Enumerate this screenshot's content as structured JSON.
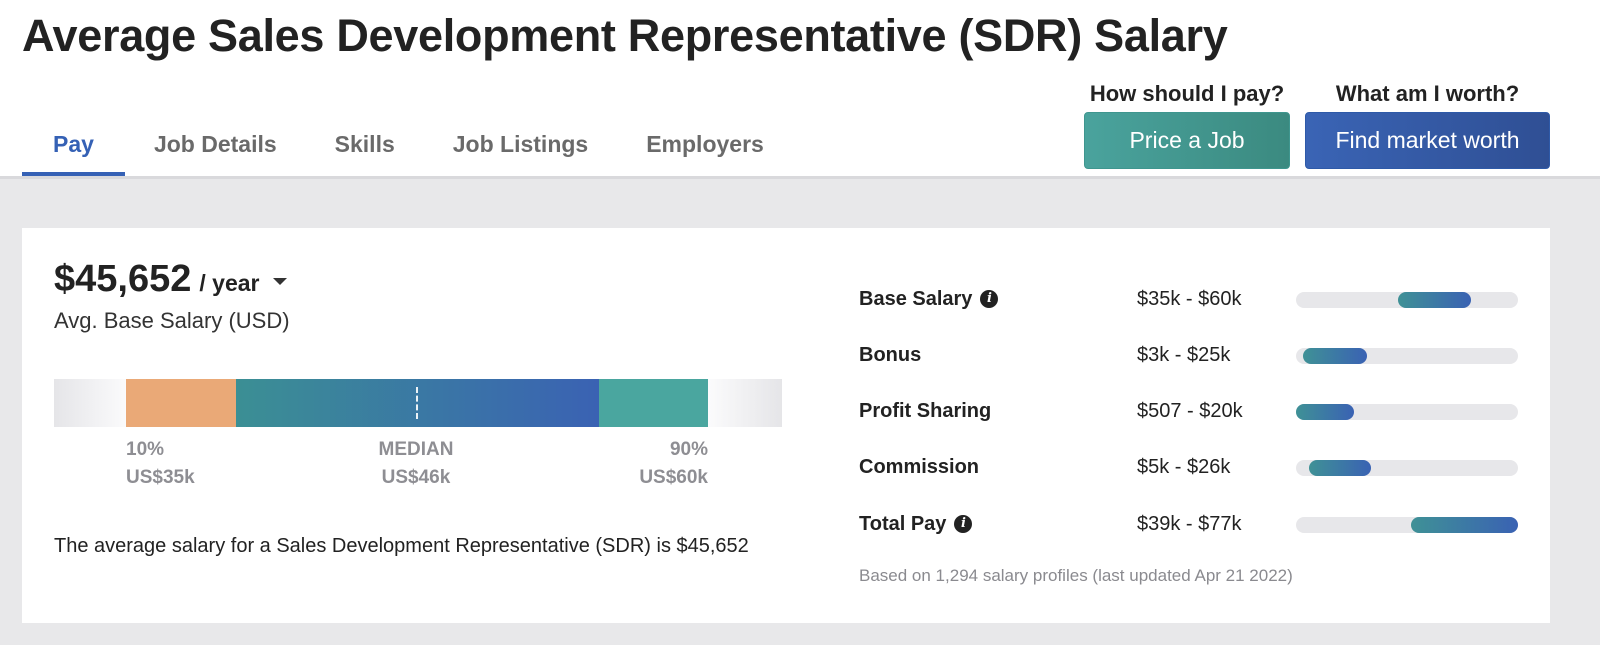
{
  "header": {
    "title": "Average Sales Development Representative (SDR) Salary"
  },
  "tabs": [
    {
      "label": "Pay",
      "active": true
    },
    {
      "label": "Job Details",
      "active": false
    },
    {
      "label": "Skills",
      "active": false
    },
    {
      "label": "Job Listings",
      "active": false
    },
    {
      "label": "Employers",
      "active": false
    }
  ],
  "cta": {
    "price": {
      "prompt": "How should I pay?",
      "button": "Price a Job",
      "color": "#4aa39d"
    },
    "worth": {
      "prompt": "What am I worth?",
      "button": "Find market worth",
      "color": "#3a64b5"
    }
  },
  "salary": {
    "amount": "$45,652",
    "period": "/ year",
    "period_icon": "caret-down-icon",
    "caption": "Avg. Base Salary (USD)"
  },
  "range": {
    "low": {
      "label": "10%",
      "value": "US$35k",
      "color": "#eaa977"
    },
    "median": {
      "label": "MEDIAN",
      "value": "US$46k"
    },
    "high": {
      "label": "90%",
      "value": "US$60k",
      "color": "#4aa69f"
    }
  },
  "summary": {
    "text": "The average salary for a Sales Development Representative (SDR) is $45,652"
  },
  "pay_breakdown": [
    {
      "label": "Base Salary",
      "info": true,
      "range": "$35k - $60k",
      "fill_start_pct": 46,
      "fill_end_pct": 79
    },
    {
      "label": "Bonus",
      "info": false,
      "range": "$3k - $25k",
      "fill_start_pct": 3,
      "fill_end_pct": 32
    },
    {
      "label": "Profit Sharing",
      "info": false,
      "range": "$507 - $20k",
      "fill_start_pct": 0,
      "fill_end_pct": 26
    },
    {
      "label": "Commission",
      "info": false,
      "range": "$5k - $26k",
      "fill_start_pct": 6,
      "fill_end_pct": 34
    },
    {
      "label": "Total Pay",
      "info": true,
      "range": "$39k - $77k",
      "fill_start_pct": 52,
      "fill_end_pct": 100
    }
  ],
  "footnote": "Based on 1,294 salary profiles (last updated Apr 21 2022)",
  "colors": {
    "accent_blue": "#3561b5",
    "teal": "#4aa39d",
    "orange": "#eaa977",
    "background": "#e8e8ea"
  }
}
